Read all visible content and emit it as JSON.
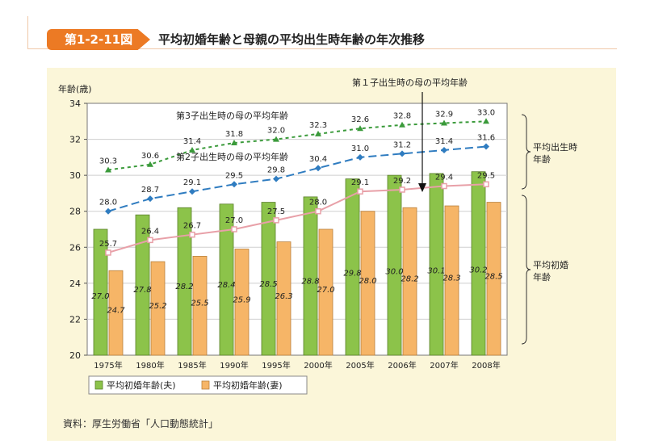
{
  "figure": {
    "badge": "第1-2-11図",
    "title": "平均初婚年齢と母親の平均出生時年齢の年次推移",
    "source": "資料：厚生労働省「人口動態統計」"
  },
  "colors": {
    "accent": "#ec7a24",
    "husband_bar": "#8cc34a",
    "wife_bar": "#f6b567",
    "first_child": "#e8a0a8",
    "second_child": "#2f7cc0",
    "third_child": "#3a9a3a",
    "panel": "#fbf6d9"
  },
  "chart_data": {
    "type": "bar",
    "ylabel": "年齢(歳)",
    "ylim": [
      20,
      34
    ],
    "yticks": [
      20,
      22,
      24,
      26,
      28,
      30,
      32,
      34
    ],
    "categories": [
      "1975年",
      "1980年",
      "1985年",
      "1990年",
      "1995年",
      "2000年",
      "2005年",
      "2006年",
      "2007年",
      "2008年"
    ],
    "series": [
      {
        "name": "平均初婚年齢(夫)",
        "kind": "bar",
        "values": [
          27.0,
          27.8,
          28.2,
          28.4,
          28.5,
          28.8,
          29.8,
          30.0,
          30.1,
          30.2
        ]
      },
      {
        "name": "平均初婚年齢(妻)",
        "kind": "bar",
        "values": [
          24.7,
          25.2,
          25.5,
          25.9,
          26.3,
          27.0,
          28.0,
          28.2,
          28.3,
          28.5
        ]
      },
      {
        "name": "第1子出生時の母の平均年齢",
        "kind": "line",
        "values": [
          25.7,
          26.4,
          26.7,
          27.0,
          27.5,
          28.0,
          29.1,
          29.2,
          29.4,
          29.5
        ]
      },
      {
        "name": "第2子出生時の母の平均年齢",
        "kind": "line",
        "values": [
          28.0,
          28.7,
          29.1,
          29.5,
          29.8,
          30.4,
          31.0,
          31.2,
          31.4,
          31.6
        ]
      },
      {
        "name": "第3子出生時の母の平均年齢",
        "kind": "line",
        "values": [
          30.3,
          30.6,
          31.4,
          31.8,
          32.0,
          32.3,
          32.6,
          32.8,
          32.9,
          33.0
        ]
      }
    ],
    "annotations": {
      "third_child_label": "第3子出生時の母の平均年齢",
      "second_child_label": "第2子出生時の母の平均年齢",
      "first_child_label": "第１子出生時の母の平均年齢",
      "bracket_upper": [
        "平均出生時",
        "年齢"
      ],
      "bracket_lower": [
        "平均初婚",
        "年齢"
      ]
    },
    "legend": [
      "平均初婚年齢(夫)",
      "平均初婚年齢(妻)"
    ]
  }
}
